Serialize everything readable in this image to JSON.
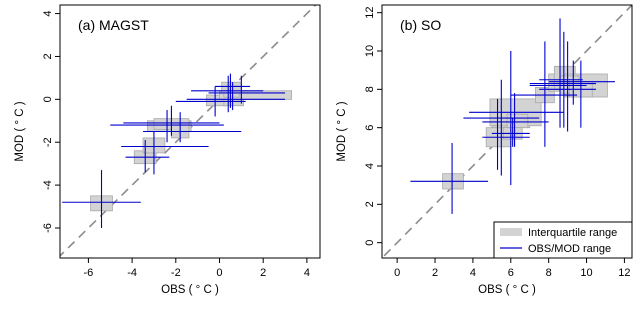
{
  "chart_data": [
    {
      "type": "scatter",
      "title": "(a) MAGST",
      "xlabel": "OBS ( ° C )",
      "ylabel": "MOD ( ° C )",
      "xlim": [
        -7.3,
        4.6
      ],
      "ylim": [
        -7.4,
        4.4
      ],
      "xticks": [
        -6,
        -4,
        -2,
        0,
        2,
        4
      ],
      "yticks": [
        -6,
        -4,
        -2,
        0,
        2,
        4
      ],
      "xtick_labels": [
        "-6",
        "-4",
        "-2",
        "0",
        "2",
        "4"
      ],
      "ytick_labels": [
        "-6",
        "-4",
        "-2",
        "0",
        "2",
        "4"
      ],
      "one_to_one_line": true,
      "points": [
        {
          "obs": -5.4,
          "mod": -4.8,
          "box_x": [
            -5.9,
            -4.9
          ],
          "box_y": [
            -5.2,
            -4.5
          ],
          "obs_range": [
            -7.2,
            -3.6
          ],
          "mod_range": [
            -6.0,
            -3.3
          ]
        },
        {
          "obs": -3.4,
          "mod": -2.7,
          "box_x": [
            -3.9,
            -2.9
          ],
          "box_y": [
            -3.0,
            -2.4
          ],
          "obs_range": [
            -4.3,
            -2.3
          ],
          "mod_range": [
            -3.4,
            -1.9
          ]
        },
        {
          "obs": -3.0,
          "mod": -2.2,
          "box_x": [
            -3.5,
            -2.5
          ],
          "box_y": [
            -2.5,
            -1.8
          ],
          "obs_range": [
            -4.5,
            -0.5
          ],
          "mod_range": [
            -3.5,
            -1.5
          ]
        },
        {
          "obs": -2.4,
          "mod": -1.2,
          "box_x": [
            -3.3,
            -1.3
          ],
          "box_y": [
            -1.5,
            -1.0
          ],
          "obs_range": [
            -5.0,
            0.2
          ],
          "mod_range": [
            -2.0,
            -0.5
          ]
        },
        {
          "obs": -2.2,
          "mod": -1.1,
          "box_x": [
            -3.0,
            -1.4
          ],
          "box_y": [
            -1.4,
            -0.9
          ],
          "obs_range": [
            -4.4,
            0.0
          ],
          "mod_range": [
            -1.7,
            -0.3
          ]
        },
        {
          "obs": -1.8,
          "mod": -1.5,
          "box_x": [
            -2.2,
            -1.4
          ],
          "box_y": [
            -1.8,
            -1.2
          ],
          "obs_range": [
            -3.5,
            1.0
          ],
          "mod_range": [
            -2.0,
            -0.6
          ]
        },
        {
          "obs": -0.2,
          "mod": -0.1,
          "box_x": [
            -0.6,
            0.3
          ],
          "box_y": [
            -0.3,
            0.2
          ],
          "obs_range": [
            -2.0,
            1.2
          ],
          "mod_range": [
            -0.8,
            0.6
          ]
        },
        {
          "obs": 0.6,
          "mod": 0.0,
          "box_x": [
            0.2,
            1.1
          ],
          "box_y": [
            -0.3,
            0.3
          ],
          "obs_range": [
            -1.5,
            3.0
          ],
          "mod_range": [
            -0.5,
            0.8
          ]
        },
        {
          "obs": 1.0,
          "mod": 0.3,
          "box_x": [
            0.0,
            3.3
          ],
          "box_y": [
            0.0,
            0.4
          ],
          "obs_range": [
            -0.5,
            3.0
          ],
          "mod_range": [
            -0.2,
            1.1
          ]
        },
        {
          "obs": 0.5,
          "mod": 0.4,
          "box_x": [
            0.2,
            0.9
          ],
          "box_y": [
            0.1,
            0.7
          ],
          "obs_range": [
            -1.3,
            2.0
          ],
          "mod_range": [
            -0.4,
            1.2
          ]
        },
        {
          "obs": 0.4,
          "mod": 0.6,
          "box_x": [
            0.1,
            1.0
          ],
          "box_y": [
            0.3,
            0.8
          ],
          "obs_range": [
            -0.2,
            1.4
          ],
          "mod_range": [
            -0.6,
            1.1
          ]
        }
      ]
    },
    {
      "type": "scatter",
      "title": "(b) SO",
      "xlabel": "OBS ( ° C )",
      "ylabel": "MOD ( ° C )",
      "xlim": [
        -0.8,
        12.4
      ],
      "ylim": [
        -0.8,
        12.4
      ],
      "xticks": [
        0,
        2,
        4,
        6,
        8,
        10,
        12
      ],
      "yticks": [
        0,
        2,
        4,
        6,
        8,
        10,
        12
      ],
      "xtick_labels": [
        "0",
        "2",
        "4",
        "6",
        "8",
        "10",
        "12"
      ],
      "ytick_labels": [
        "0",
        "2",
        "4",
        "6",
        "8",
        "10",
        "12"
      ],
      "one_to_one_line": true,
      "points": [
        {
          "obs": 2.9,
          "mod": 3.2,
          "box_x": [
            2.4,
            3.5
          ],
          "box_y": [
            2.8,
            3.6
          ],
          "obs_range": [
            0.7,
            4.8
          ],
          "mod_range": [
            1.5,
            5.2
          ]
        },
        {
          "obs": 5.3,
          "mod": 5.5,
          "box_x": [
            4.7,
            6.0
          ],
          "box_y": [
            5.0,
            6.0
          ],
          "obs_range": [
            4.5,
            7.0
          ],
          "mod_range": [
            3.8,
            7.5
          ]
        },
        {
          "obs": 6.0,
          "mod": 6.5,
          "box_x": [
            5.0,
            7.0
          ],
          "box_y": [
            6.0,
            7.0
          ],
          "obs_range": [
            3.5,
            7.5
          ],
          "mod_range": [
            3.0,
            10.0
          ]
        },
        {
          "obs": 5.5,
          "mod": 6.8,
          "box_x": [
            4.9,
            7.6
          ],
          "box_y": [
            6.1,
            7.5
          ],
          "obs_range": [
            3.8,
            8.8
          ],
          "mod_range": [
            3.5,
            8.5
          ]
        },
        {
          "obs": 6.2,
          "mod": 6.3,
          "box_x": [
            5.8,
            6.9
          ],
          "box_y": [
            6.0,
            6.7
          ],
          "obs_range": [
            4.5,
            8.0
          ],
          "mod_range": [
            5.0,
            7.8
          ]
        },
        {
          "obs": 6.1,
          "mod": 5.7,
          "box_x": [
            5.6,
            6.6
          ],
          "box_y": [
            5.4,
            6.0
          ],
          "obs_range": [
            5.0,
            7.0
          ],
          "mod_range": [
            5.0,
            6.5
          ]
        },
        {
          "obs": 7.8,
          "mod": 7.7,
          "box_x": [
            7.3,
            8.3
          ],
          "box_y": [
            7.3,
            8.1
          ],
          "obs_range": [
            6.0,
            9.5
          ],
          "mod_range": [
            5.0,
            10.5
          ]
        },
        {
          "obs": 8.6,
          "mod": 8.3,
          "box_x": [
            8.0,
            9.5
          ],
          "box_y": [
            7.9,
            8.8
          ],
          "obs_range": [
            7.0,
            10.5
          ],
          "mod_range": [
            6.0,
            11.7
          ]
        },
        {
          "obs": 8.8,
          "mod": 8.5,
          "box_x": [
            8.3,
            9.4
          ],
          "box_y": [
            8.0,
            9.2
          ],
          "obs_range": [
            7.5,
            9.8
          ],
          "mod_range": [
            6.0,
            11.0
          ]
        },
        {
          "obs": 9.3,
          "mod": 8.4,
          "box_x": [
            8.8,
            11.1
          ],
          "box_y": [
            7.6,
            8.8
          ],
          "obs_range": [
            8.0,
            11.5
          ],
          "mod_range": [
            7.2,
            9.5
          ]
        },
        {
          "obs": 9.0,
          "mod": 8.2,
          "box_x": [
            8.6,
            9.6
          ],
          "box_y": [
            7.8,
            8.7
          ],
          "obs_range": [
            7.0,
            10.0
          ],
          "mod_range": [
            5.8,
            10.5
          ]
        },
        {
          "obs": 9.7,
          "mod": 8.0,
          "box_x": [
            9.1,
            10.3
          ],
          "box_y": [
            7.6,
            8.4
          ],
          "obs_range": [
            7.5,
            10.5
          ],
          "mod_range": [
            6.0,
            9.5
          ]
        }
      ],
      "legend": {
        "placement": "bottom-right",
        "entries": [
          {
            "label": "Interquartile range",
            "kind": "box"
          },
          {
            "label": "OBS/MOD range",
            "kind": "line"
          }
        ]
      }
    }
  ],
  "colors": {
    "box_fill": "#d3d3d3",
    "box_stroke": "#a9a9a9",
    "range_line": "#0000cd",
    "diagonal": "#8c8c8c",
    "axis": "#000000"
  }
}
